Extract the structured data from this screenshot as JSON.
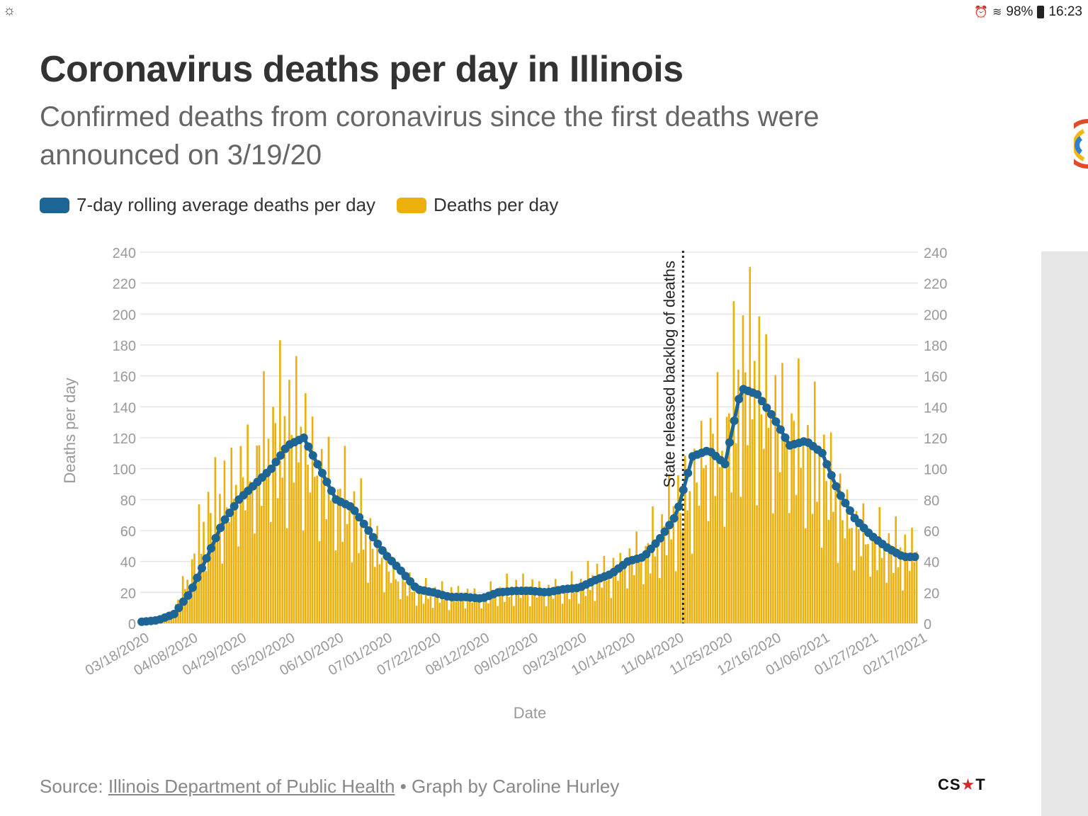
{
  "status_bar": {
    "left_icon": "sun-cloud-icon",
    "battery": "98%",
    "time": "16:23"
  },
  "chart_title": "Coronavirus deaths per day in Illinois",
  "chart_subtitle": "Confirmed deaths from coronavirus since the first deaths were announced on 3/19/20",
  "legend": {
    "avg_label": "7-day rolling average deaths per day",
    "daily_label": "Deaths per day"
  },
  "colors": {
    "avg": "#1c6594",
    "daily": "#ebb00c",
    "grid": "#e5e5e5",
    "axis_text": "#999999"
  },
  "footer": {
    "source_prefix": "Source: ",
    "source_link": "Illinois Department of Public Health",
    "byline": " • Graph by Caroline Hurley"
  },
  "logo": {
    "text_before": "CS",
    "star": "★",
    "text_after": "T"
  },
  "chart_data": {
    "type": "bar",
    "title": "Coronavirus deaths per day in Illinois",
    "xlabel": "Date",
    "ylabel": "Deaths per day",
    "ylim": [
      0,
      240
    ],
    "yticks": [
      0,
      20,
      40,
      60,
      80,
      100,
      120,
      140,
      160,
      180,
      200,
      220,
      240
    ],
    "x_tick_labels": [
      "03/18/2020",
      "04/08/2020",
      "04/29/2020",
      "05/20/2020",
      "06/10/2020",
      "07/01/2020",
      "07/22/2020",
      "08/12/2020",
      "09/02/2020",
      "09/23/2020",
      "10/14/2020",
      "11/04/2020",
      "11/25/2020",
      "12/16/2020",
      "01/06/2021",
      "01/27/2021",
      "02/17/2021"
    ],
    "annotation": "State released backlog of deaths",
    "annotation_week": 33.5,
    "series": [
      {
        "name": "Deaths per day",
        "type": "bar",
        "weekly_values": [
          1,
          2,
          7,
          30,
          62,
          75,
          86,
          96,
          112,
          117,
          112,
          90,
          78,
          69,
          52,
          36,
          26,
          19,
          18,
          17,
          17,
          16,
          19,
          21,
          21,
          19,
          21,
          22,
          28,
          30,
          38,
          42,
          52,
          68,
          80,
          110,
          105,
          150,
          148,
          123,
          118,
          105,
          93,
          73,
          58,
          50,
          46,
          42
        ]
      },
      {
        "name": "7-day rolling average deaths per day",
        "type": "line",
        "weekly_values": [
          1,
          2,
          6,
          20,
          42,
          65,
          80,
          90,
          100,
          115,
          120,
          100,
          80,
          75,
          60,
          45,
          34,
          22,
          20,
          17,
          17,
          16,
          20,
          21,
          21,
          20,
          22,
          23,
          28,
          32,
          40,
          43,
          55,
          70,
          108,
          112,
          103,
          152,
          148,
          133,
          115,
          118,
          110,
          85,
          68,
          57,
          49,
          43
        ]
      }
    ]
  }
}
